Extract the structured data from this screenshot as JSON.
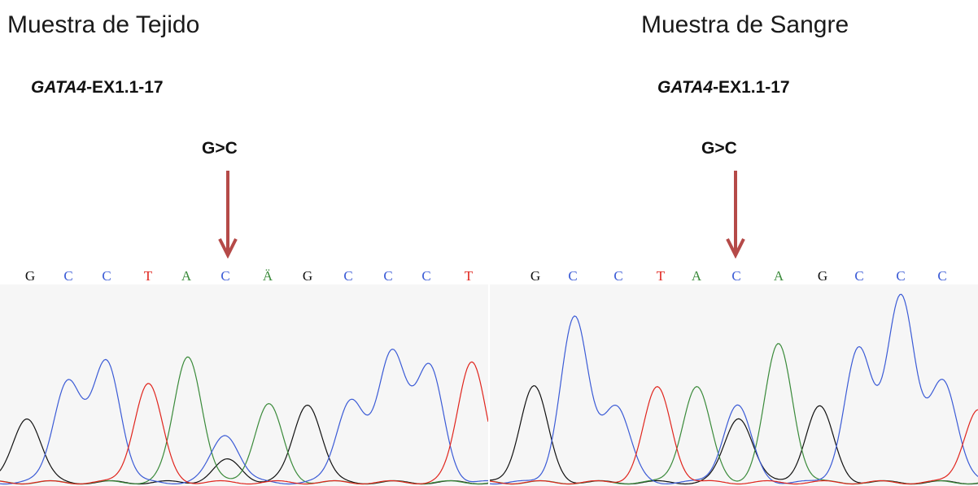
{
  "colors": {
    "A": "#3a8a3a",
    "C": "#3b5bd6",
    "G": "#111111",
    "T": "#e0251d",
    "arrow": "#b54a48",
    "trace_bg": "#f6f6f6"
  },
  "panels": [
    {
      "sample_title": "Muestra de Tejido",
      "gene_italic": "GATA4",
      "gene_rest": "-EX1.1-17",
      "mutation": "G>C",
      "bases": [
        "G",
        "C",
        "C",
        "T",
        "A",
        "C",
        "Ä",
        "G",
        "C",
        "C",
        "C",
        "T"
      ]
    },
    {
      "sample_title": "Muestra de Sangre",
      "gene_italic": "GATA4",
      "gene_rest": "-EX1.1-17",
      "mutation": "G>C",
      "bases": [
        "G",
        "C",
        "C",
        "T",
        "A",
        "C",
        "A",
        "G",
        "C",
        "C",
        "C"
      ]
    }
  ]
}
